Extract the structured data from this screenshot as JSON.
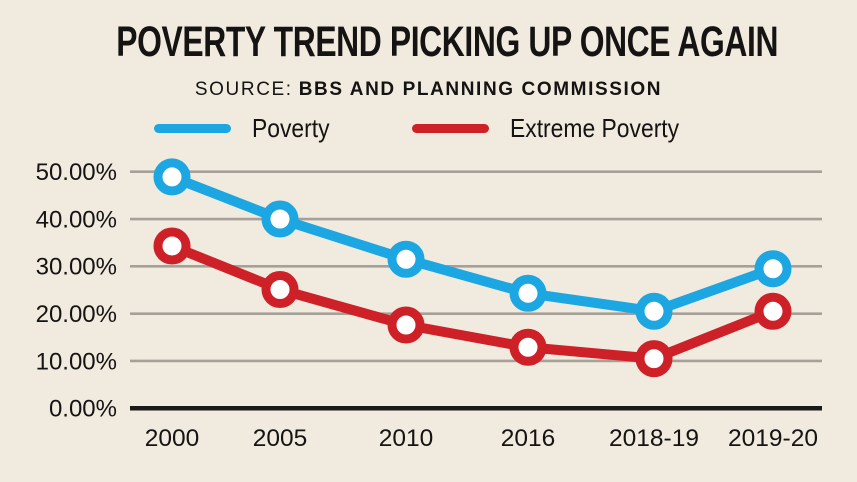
{
  "header": {
    "title": "POVERTY TREND PICKING UP ONCE AGAIN",
    "source_label": "SOURCE:",
    "source_value": "BBS AND PLANNING COMMISSION"
  },
  "colors": {
    "background": "#F0EADF",
    "poverty_blue": "#1CA7E2",
    "extreme_poverty_red": "#CE2127",
    "gridline_gray": "#A6A198",
    "axis_black": "#1B1A18",
    "text_black": "#151413",
    "marker_fill": "#FFFFFF"
  },
  "chart_data": {
    "type": "line",
    "title": "POVERTY TREND PICKING UP ONCE AGAIN",
    "source": "SOURCE: BBS AND PLANNING COMMISSION",
    "categories": [
      "2000",
      "2005",
      "2010",
      "2016",
      "2018-19",
      "2019-20"
    ],
    "series": [
      {
        "name": "Poverty",
        "color": "#1CA7E2",
        "values": [
          48.9,
          40.0,
          31.5,
          24.3,
          20.5,
          29.5
        ]
      },
      {
        "name": "Extreme Poverty",
        "color": "#CE2127",
        "values": [
          34.3,
          25.1,
          17.6,
          12.9,
          10.5,
          20.5
        ]
      }
    ],
    "yticks": [
      {
        "value": 0,
        "label": "0.00%"
      },
      {
        "value": 10,
        "label": "10.00%"
      },
      {
        "value": 20,
        "label": "20.00%"
      },
      {
        "value": 30,
        "label": "30.00%"
      },
      {
        "value": 40,
        "label": "40.00%"
      },
      {
        "value": 50,
        "label": "50.00%"
      }
    ],
    "ylim": [
      0,
      52
    ],
    "grid": true,
    "legend_position": "top",
    "marker": "open-circle"
  }
}
